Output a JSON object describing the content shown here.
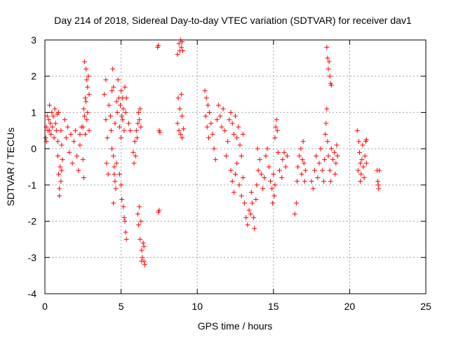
{
  "chart_data": {
    "type": "scatter",
    "title": "Day 214 of 2018, Sidereal Day-to-day VTEC variation (SDTVAR) for receiver dav1",
    "xlabel": "GPS time / hours",
    "ylabel": "SDTVAR / TECUs",
    "xlim": [
      0,
      25
    ],
    "ylim": [
      -4,
      3
    ],
    "xticks": [
      0,
      5,
      10,
      15,
      20,
      25
    ],
    "yticks": [
      -4,
      -3,
      -2,
      -1,
      0,
      1,
      2,
      3
    ],
    "xtick_labels": [
      "0",
      "5",
      "10",
      "15",
      "20",
      "25"
    ],
    "ytick_labels": [
      "-4",
      "-3",
      "-2",
      "-1",
      "0",
      "1",
      "2",
      "3"
    ],
    "grid": true,
    "marker": "+",
    "color": "#ff0000",
    "series": [
      {
        "name": "dav1",
        "points": [
          [
            0.05,
            0.3
          ],
          [
            0.1,
            0.6
          ],
          [
            0.15,
            0.9
          ],
          [
            0.2,
            0.5
          ],
          [
            0.25,
            0.8
          ],
          [
            0.3,
            1.2
          ],
          [
            0.35,
            0.7
          ],
          [
            0.4,
            0.4
          ],
          [
            0.45,
            1.0
          ],
          [
            0.5,
            0.6
          ],
          [
            0.55,
            0.9
          ],
          [
            0.6,
            0.3
          ],
          [
            0.65,
            1.1
          ],
          [
            0.7,
            0.7
          ],
          [
            0.75,
            0.5
          ],
          [
            0.8,
            0.95
          ],
          [
            0.85,
            0.2
          ],
          [
            0.9,
            1.0
          ],
          [
            0.1,
            0.2
          ],
          [
            0.3,
            0.5
          ],
          [
            0.85,
            -0.2
          ],
          [
            0.9,
            -0.7
          ],
          [
            0.95,
            -1.1
          ],
          [
            1.0,
            -0.5
          ],
          [
            1.05,
            -0.9
          ],
          [
            1.1,
            0.1
          ],
          [
            1.15,
            -0.3
          ],
          [
            0.95,
            -1.3
          ],
          [
            1.05,
            0.5
          ],
          [
            1.1,
            -0.6
          ],
          [
            1.3,
            0.8
          ],
          [
            1.4,
            0.3
          ],
          [
            1.5,
            0.6
          ],
          [
            1.6,
            -0.1
          ],
          [
            1.7,
            0.4
          ],
          [
            1.8,
            -0.4
          ],
          [
            1.9,
            0.2
          ],
          [
            2.0,
            0.5
          ],
          [
            2.1,
            -0.2
          ],
          [
            2.2,
            -0.6
          ],
          [
            2.3,
            0.1
          ],
          [
            2.4,
            0.6
          ],
          [
            2.5,
            -0.3
          ],
          [
            2.55,
            -0.8
          ],
          [
            2.3,
            0.4
          ],
          [
            2.6,
            0.9
          ],
          [
            2.65,
            0.4
          ],
          [
            2.7,
            1.3
          ],
          [
            2.75,
            0.8
          ],
          [
            2.8,
            1.0
          ],
          [
            2.5,
            0.6
          ],
          [
            2.6,
            2.4
          ],
          [
            2.7,
            2.2
          ],
          [
            2.75,
            1.9
          ],
          [
            2.85,
            2.0
          ],
          [
            2.9,
            1.5
          ],
          [
            2.8,
            1.7
          ],
          [
            2.55,
            1.1
          ],
          [
            2.65,
            1.4
          ],
          [
            2.9,
            0.5
          ],
          [
            3.9,
            1.5
          ],
          [
            4.0,
            0.8
          ],
          [
            4.1,
            0.3
          ],
          [
            4.05,
            -0.4
          ],
          [
            4.0,
            1.9
          ],
          [
            4.15,
            -0.7
          ],
          [
            4.2,
            1.2
          ],
          [
            4.3,
            0.9
          ],
          [
            4.35,
            0.5
          ],
          [
            4.4,
            1.6
          ],
          [
            4.45,
            2.2
          ],
          [
            4.5,
            1.7
          ],
          [
            4.4,
            0.0
          ],
          [
            4.5,
            -0.2
          ],
          [
            4.55,
            -0.5
          ],
          [
            4.6,
            -0.9
          ],
          [
            4.65,
            -1.1
          ],
          [
            4.5,
            -1.5
          ],
          [
            4.55,
            -0.7
          ],
          [
            4.7,
            -0.4
          ],
          [
            4.6,
            0.7
          ],
          [
            4.7,
            1.3
          ],
          [
            4.75,
            1.0
          ],
          [
            4.8,
            1.9
          ],
          [
            4.85,
            1.4
          ],
          [
            4.9,
            0.6
          ],
          [
            4.95,
            1.2
          ],
          [
            5.0,
            1.6
          ],
          [
            5.05,
            0.9
          ],
          [
            5.1,
            1.4
          ],
          [
            5.15,
            1.1
          ],
          [
            5.2,
            0.5
          ],
          [
            5.25,
            1.7
          ],
          [
            5.3,
            1.0
          ],
          [
            5.35,
            1.4
          ],
          [
            5.0,
            0.3
          ],
          [
            5.1,
            0.8
          ],
          [
            4.9,
            -0.7
          ],
          [
            5.05,
            -1.4
          ],
          [
            5.2,
            -1.9
          ],
          [
            5.3,
            -2.3
          ],
          [
            5.35,
            -2.5
          ],
          [
            5.15,
            -1.6
          ],
          [
            5.25,
            -2.0
          ],
          [
            5.0,
            -1.0
          ],
          [
            5.5,
            0.7
          ],
          [
            5.6,
            0.5
          ],
          [
            5.8,
            -0.1
          ],
          [
            5.85,
            -0.4
          ],
          [
            5.9,
            0.2
          ],
          [
            5.95,
            -0.2
          ],
          [
            6.0,
            0.5
          ],
          [
            6.05,
            0.3
          ],
          [
            6.1,
            0.7
          ],
          [
            6.15,
            1.0
          ],
          [
            6.2,
            0.8
          ],
          [
            6.25,
            1.1
          ],
          [
            6.3,
            0.6
          ],
          [
            6.1,
            -1.8
          ],
          [
            6.15,
            -2.1
          ],
          [
            6.2,
            -1.6
          ],
          [
            6.25,
            -2.5
          ],
          [
            6.3,
            -2.0
          ],
          [
            6.35,
            -2.8
          ],
          [
            6.4,
            -3.0
          ],
          [
            6.45,
            -2.6
          ],
          [
            6.5,
            -3.1
          ],
          [
            6.55,
            -3.2
          ],
          [
            6.35,
            -3.1
          ],
          [
            6.5,
            -2.7
          ],
          [
            7.4,
            2.8
          ],
          [
            7.45,
            2.85
          ],
          [
            7.5,
            0.5
          ],
          [
            7.55,
            0.45
          ],
          [
            7.5,
            -1.7
          ],
          [
            7.45,
            -1.75
          ],
          [
            8.7,
            2.6
          ],
          [
            8.8,
            2.9
          ],
          [
            8.85,
            2.7
          ],
          [
            8.9,
            3.0
          ],
          [
            8.95,
            2.8
          ],
          [
            9.0,
            2.95
          ],
          [
            9.05,
            2.7
          ],
          [
            8.75,
            1.4
          ],
          [
            8.85,
            1.1
          ],
          [
            8.95,
            1.5
          ],
          [
            9.0,
            0.9
          ],
          [
            8.7,
            0.7
          ],
          [
            8.8,
            0.5
          ],
          [
            8.9,
            0.4
          ],
          [
            9.0,
            0.3
          ],
          [
            9.1,
            0.55
          ],
          [
            10.5,
            1.6
          ],
          [
            10.6,
            1.4
          ],
          [
            10.7,
            1.2
          ],
          [
            10.55,
            0.9
          ],
          [
            10.65,
            0.6
          ],
          [
            10.75,
            0.3
          ],
          [
            10.8,
            1.0
          ],
          [
            10.9,
            0.7
          ],
          [
            11.0,
            0.4
          ],
          [
            11.1,
            0.0
          ],
          [
            11.2,
            -0.3
          ],
          [
            11.3,
            0.8
          ],
          [
            11.4,
            1.2
          ],
          [
            11.5,
            0.9
          ],
          [
            11.6,
            0.6
          ],
          [
            11.7,
            1.1
          ],
          [
            11.8,
            0.5
          ],
          [
            11.9,
            -0.2
          ],
          [
            12.0,
            0.2
          ],
          [
            12.1,
            0.8
          ],
          [
            12.2,
            1.0
          ],
          [
            12.3,
            0.7
          ],
          [
            12.4,
            0.4
          ],
          [
            12.5,
            0.9
          ],
          [
            12.6,
            0.3
          ],
          [
            12.7,
            0.6
          ],
          [
            12.8,
            0.1
          ],
          [
            12.9,
            -0.2
          ],
          [
            13.0,
            0.4
          ],
          [
            12.2,
            -0.6
          ],
          [
            12.3,
            -0.9
          ],
          [
            12.4,
            -1.2
          ],
          [
            12.5,
            -0.7
          ],
          [
            12.6,
            -0.4
          ],
          [
            12.75,
            -1.0
          ],
          [
            12.9,
            -1.3
          ],
          [
            13.0,
            -0.8
          ],
          [
            13.1,
            -1.5
          ],
          [
            13.2,
            -1.9
          ],
          [
            13.3,
            -2.1
          ],
          [
            13.4,
            -1.7
          ],
          [
            13.5,
            -1.8
          ],
          [
            13.55,
            -1.2
          ],
          [
            13.6,
            -1.5
          ],
          [
            13.7,
            -1.9
          ],
          [
            13.75,
            -2.2
          ],
          [
            13.85,
            -1.4
          ],
          [
            13.9,
            -1.0
          ],
          [
            14.0,
            -0.6
          ],
          [
            14.1,
            -0.3
          ],
          [
            13.95,
            0.0
          ],
          [
            14.2,
            -0.7
          ],
          [
            14.3,
            -1.1
          ],
          [
            14.4,
            -0.8
          ],
          [
            14.5,
            -0.2
          ],
          [
            14.6,
            0.0
          ],
          [
            14.7,
            -0.5
          ],
          [
            14.8,
            -0.9
          ],
          [
            14.9,
            -1.1
          ],
          [
            15.0,
            -0.7
          ],
          [
            15.05,
            -1.3
          ],
          [
            15.1,
            -1.0
          ],
          [
            14.95,
            -1.5
          ],
          [
            15.1,
            0.3
          ],
          [
            15.15,
            0.6
          ],
          [
            15.2,
            0.8
          ],
          [
            15.25,
            0.5
          ],
          [
            15.3,
            -0.1
          ],
          [
            15.4,
            -0.6
          ],
          [
            15.55,
            -0.8
          ],
          [
            15.6,
            -0.3
          ],
          [
            15.7,
            -0.1
          ],
          [
            15.8,
            -0.5
          ],
          [
            15.9,
            -0.2
          ],
          [
            16.4,
            -1.8
          ],
          [
            16.5,
            -1.5
          ],
          [
            16.55,
            -0.9
          ],
          [
            16.6,
            -0.5
          ],
          [
            16.7,
            -0.2
          ],
          [
            16.8,
            0.0
          ],
          [
            16.85,
            -0.7
          ],
          [
            16.9,
            -0.3
          ],
          [
            16.95,
            0.2
          ],
          [
            17.0,
            -0.4
          ],
          [
            17.05,
            -0.9
          ],
          [
            17.1,
            -0.6
          ],
          [
            17.5,
            -0.9
          ],
          [
            17.6,
            -1.1
          ],
          [
            17.7,
            -0.6
          ],
          [
            17.8,
            -0.2
          ],
          [
            17.9,
            -0.8
          ],
          [
            18.0,
            -0.4
          ],
          [
            18.1,
            0.0
          ],
          [
            18.2,
            -0.6
          ],
          [
            18.3,
            -0.9
          ],
          [
            18.35,
            -0.3
          ],
          [
            18.4,
            0.4
          ],
          [
            18.45,
            0.7
          ],
          [
            18.5,
            1.1
          ],
          [
            18.55,
            0.2
          ],
          [
            18.6,
            -0.2
          ],
          [
            18.7,
            -0.6
          ],
          [
            18.75,
            -0.9
          ],
          [
            18.8,
            0.0
          ],
          [
            18.5,
            2.8
          ],
          [
            18.55,
            2.5
          ],
          [
            18.6,
            2.2
          ],
          [
            18.7,
            2.0
          ],
          [
            18.75,
            1.8
          ],
          [
            18.8,
            1.75
          ],
          [
            18.65,
            2.4
          ],
          [
            18.9,
            -0.3
          ],
          [
            19.0,
            -0.1
          ],
          [
            19.05,
            -0.7
          ],
          [
            19.1,
            -0.4
          ],
          [
            19.15,
            0.1
          ],
          [
            19.2,
            -0.2
          ],
          [
            20.5,
            0.5
          ],
          [
            20.6,
            0.2
          ],
          [
            20.65,
            -0.1
          ],
          [
            20.7,
            -0.4
          ],
          [
            20.75,
            -0.7
          ],
          [
            20.8,
            -0.3
          ],
          [
            20.85,
            0.1
          ],
          [
            20.9,
            -0.5
          ],
          [
            20.95,
            -0.8
          ],
          [
            21.0,
            -0.2
          ],
          [
            21.05,
            0.2
          ],
          [
            21.1,
            0.25
          ],
          [
            20.55,
            -0.6
          ],
          [
            20.7,
            -0.9
          ],
          [
            21.1,
            -0.4
          ],
          [
            21.8,
            -0.6
          ],
          [
            21.85,
            -0.9
          ],
          [
            21.9,
            -1.1
          ],
          [
            21.95,
            -0.6
          ],
          [
            21.88,
            -1.0
          ]
        ]
      }
    ]
  }
}
